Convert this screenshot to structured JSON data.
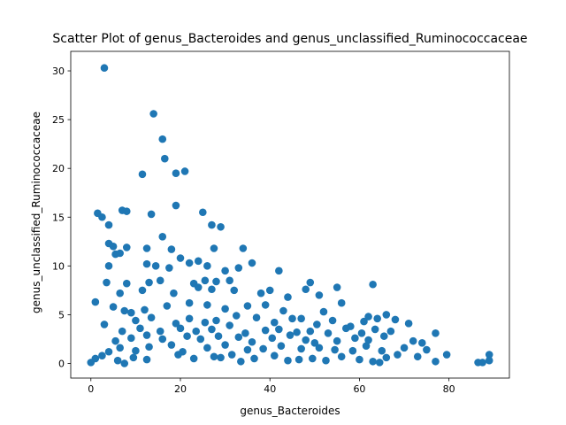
{
  "chart_data": {
    "type": "scatter",
    "title": "Scatter Plot of genus_Bacteroides and genus_unclassified_Ruminococcaceae",
    "xlabel": "genus_Bacteroides",
    "ylabel": "genus_unclassified_Ruminococcaceae",
    "xlim": [
      -4.5,
      93.5
    ],
    "ylim": [
      -1.5,
      32
    ],
    "xticks": [
      0,
      20,
      40,
      60,
      80
    ],
    "yticks": [
      0,
      5,
      10,
      15,
      20,
      25,
      30
    ],
    "grid": false,
    "legend": "none",
    "marker_color": "#1f77b4",
    "points": [
      [
        3,
        30.3
      ],
      [
        14,
        25.6
      ],
      [
        16,
        23
      ],
      [
        16.5,
        21
      ],
      [
        21,
        19.7
      ],
      [
        19,
        19.5
      ],
      [
        11.5,
        19.4
      ],
      [
        19,
        16.2
      ],
      [
        1.5,
        15.4
      ],
      [
        2.5,
        15
      ],
      [
        7,
        15.7
      ],
      [
        8,
        15.6
      ],
      [
        13.5,
        15.3
      ],
      [
        25,
        15.5
      ],
      [
        27,
        14.2
      ],
      [
        29,
        14
      ],
      [
        4,
        14.2
      ],
      [
        16,
        13
      ],
      [
        4,
        12.3
      ],
      [
        5,
        12
      ],
      [
        8,
        11.9
      ],
      [
        12.5,
        11.8
      ],
      [
        18,
        11.7
      ],
      [
        27.5,
        11.8
      ],
      [
        34,
        11.8
      ],
      [
        5.5,
        11.2
      ],
      [
        6.5,
        11.3
      ],
      [
        20,
        10.8
      ],
      [
        22,
        10.3
      ],
      [
        24,
        10.5
      ],
      [
        36,
        10.3
      ],
      [
        4,
        10
      ],
      [
        12.5,
        10.2
      ],
      [
        14.5,
        10
      ],
      [
        17.5,
        9.8
      ],
      [
        26,
        10
      ],
      [
        30,
        9.5
      ],
      [
        33,
        9.8
      ],
      [
        42,
        9.5
      ],
      [
        3.5,
        8.3
      ],
      [
        8,
        8.2
      ],
      [
        13,
        8.3
      ],
      [
        15.5,
        8.5
      ],
      [
        23,
        8.2
      ],
      [
        25.5,
        8.5
      ],
      [
        28,
        8.4
      ],
      [
        31,
        8.5
      ],
      [
        40,
        7.5
      ],
      [
        49,
        8.3
      ],
      [
        55,
        7.8
      ],
      [
        63,
        8.1
      ],
      [
        6.5,
        7.2
      ],
      [
        11.5,
        7.5
      ],
      [
        18.5,
        7.2
      ],
      [
        24,
        7.8
      ],
      [
        27,
        7.6
      ],
      [
        32,
        7.5
      ],
      [
        38,
        7.2
      ],
      [
        44,
        6.8
      ],
      [
        48,
        7.6
      ],
      [
        51,
        7
      ],
      [
        5,
        5.8
      ],
      [
        9,
        5.2
      ],
      [
        12,
        5.5
      ],
      [
        17,
        5.9
      ],
      [
        22,
        6.2
      ],
      [
        26,
        6
      ],
      [
        30,
        5.6
      ],
      [
        35,
        5.9
      ],
      [
        39,
        6
      ],
      [
        43,
        5.4
      ],
      [
        52,
        5.3
      ],
      [
        56,
        6.2
      ],
      [
        62,
        4.8
      ],
      [
        66,
        5
      ],
      [
        71,
        4.1
      ],
      [
        1,
        6.3
      ],
      [
        3,
        4
      ],
      [
        7.5,
        5.4
      ],
      [
        10,
        4.4
      ],
      [
        13.5,
        4.7
      ],
      [
        19,
        4.1
      ],
      [
        22,
        4.6
      ],
      [
        25.5,
        4.2
      ],
      [
        28,
        4.4
      ],
      [
        32.5,
        4.9
      ],
      [
        37,
        4.7
      ],
      [
        41,
        4.2
      ],
      [
        45,
        4.6
      ],
      [
        47,
        4.6
      ],
      [
        50.5,
        4
      ],
      [
        54,
        4.4
      ],
      [
        58,
        3.8
      ],
      [
        61,
        4.3
      ],
      [
        64,
        4.6
      ],
      [
        68,
        4.5
      ],
      [
        7,
        3.3
      ],
      [
        11,
        3.6
      ],
      [
        15.5,
        3.3
      ],
      [
        20,
        3.6
      ],
      [
        23.5,
        3.3
      ],
      [
        27,
        3.5
      ],
      [
        31,
        3.9
      ],
      [
        34.5,
        3.1
      ],
      [
        39,
        3.4
      ],
      [
        42,
        3.5
      ],
      [
        46,
        3.2
      ],
      [
        49,
        3.3
      ],
      [
        53,
        3.1
      ],
      [
        57,
        3.6
      ],
      [
        60.5,
        3.1
      ],
      [
        63.5,
        3.5
      ],
      [
        67,
        3.3
      ],
      [
        72,
        2.3
      ],
      [
        77,
        3.1
      ],
      [
        5.5,
        2.3
      ],
      [
        9,
        2.6
      ],
      [
        12.5,
        2.9
      ],
      [
        16,
        2.5
      ],
      [
        21.5,
        2.8
      ],
      [
        24.5,
        2.5
      ],
      [
        28.5,
        2.8
      ],
      [
        33,
        2.7
      ],
      [
        36,
        2.2
      ],
      [
        40.5,
        2.6
      ],
      [
        44.5,
        2.9
      ],
      [
        48,
        2.4
      ],
      [
        50,
        2.1
      ],
      [
        55,
        2.3
      ],
      [
        59,
        2.6
      ],
      [
        62,
        2.4
      ],
      [
        65.5,
        2.8
      ],
      [
        74,
        2.1
      ],
      [
        6.5,
        1.6
      ],
      [
        10,
        1.3
      ],
      [
        13,
        1.7
      ],
      [
        18,
        1.9
      ],
      [
        20.5,
        1.2
      ],
      [
        26,
        1.6
      ],
      [
        30,
        1.9
      ],
      [
        35,
        1.4
      ],
      [
        38.5,
        1.5
      ],
      [
        42.5,
        1.8
      ],
      [
        47,
        1.5
      ],
      [
        51,
        1.6
      ],
      [
        54.5,
        1.4
      ],
      [
        58.5,
        1.3
      ],
      [
        61.5,
        1.8
      ],
      [
        65,
        1.3
      ],
      [
        70,
        1.6
      ],
      [
        75,
        1.4
      ],
      [
        79.5,
        0.9
      ],
      [
        1,
        0.5
      ],
      [
        2.5,
        0.8
      ],
      [
        4,
        1.2
      ],
      [
        6,
        0.3
      ],
      [
        9.5,
        0.6
      ],
      [
        12.5,
        0.4
      ],
      [
        19.5,
        0.9
      ],
      [
        23,
        0.5
      ],
      [
        27.5,
        0.7
      ],
      [
        31.5,
        0.9
      ],
      [
        36.5,
        0.5
      ],
      [
        41,
        0.8
      ],
      [
        44,
        0.3
      ],
      [
        49.5,
        0.5
      ],
      [
        52.5,
        0.3
      ],
      [
        56,
        0.7
      ],
      [
        60,
        0.4
      ],
      [
        63,
        0.2
      ],
      [
        66,
        0.6
      ],
      [
        68.5,
        0.9
      ],
      [
        73,
        0.7
      ],
      [
        77,
        0.2
      ],
      [
        0,
        0.1
      ],
      [
        7.5,
        0
      ],
      [
        86.5,
        0.1
      ],
      [
        87.5,
        0.1
      ],
      [
        89,
        0.9
      ],
      [
        89,
        0.3
      ],
      [
        29,
        0.6
      ],
      [
        33.5,
        0.2
      ],
      [
        46.5,
        0.4
      ],
      [
        64.5,
        0.1
      ]
    ]
  }
}
